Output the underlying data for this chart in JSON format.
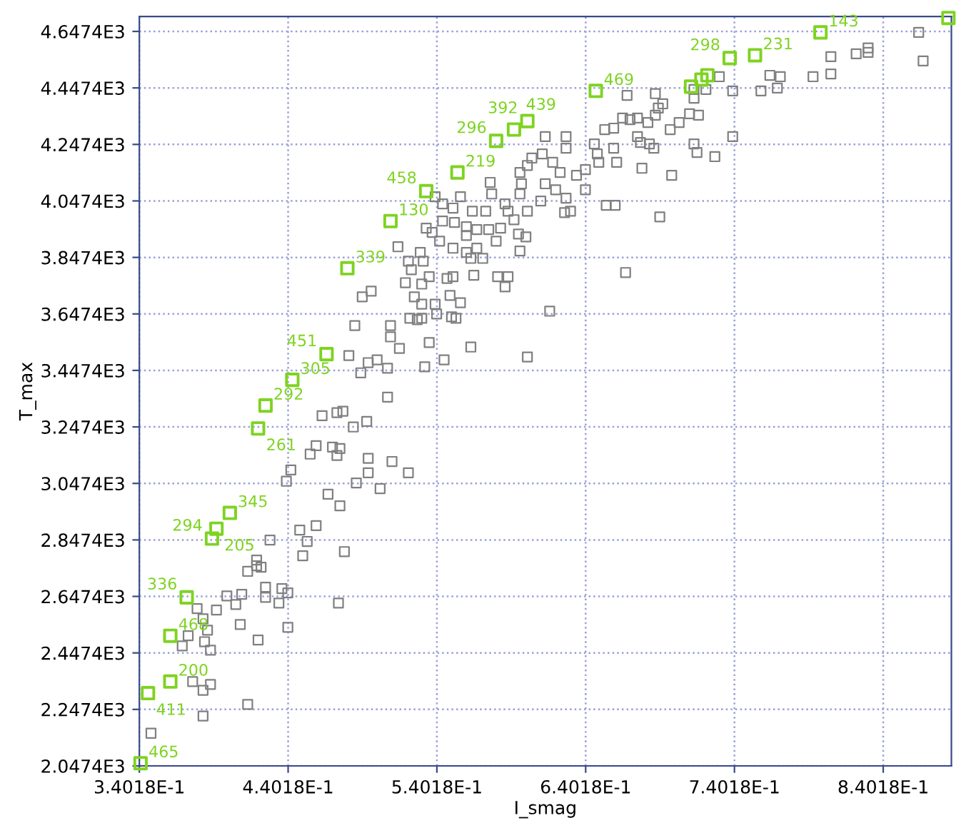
{
  "chart_data": {
    "type": "scatter",
    "xlabel": "I_smag",
    "ylabel": "T_max",
    "marker": "square",
    "grid": true,
    "xlim": [
      0.34018,
      0.886
    ],
    "ylim": [
      2047.4,
      4700
    ],
    "xticks": [
      {
        "value": 0.34018,
        "label": "3.4018E-1"
      },
      {
        "value": 0.44018,
        "label": "4.4018E-1"
      },
      {
        "value": 0.54018,
        "label": "5.4018E-1"
      },
      {
        "value": 0.64018,
        "label": "6.4018E-1"
      },
      {
        "value": 0.74018,
        "label": "7.4018E-1"
      },
      {
        "value": 0.84018,
        "label": "8.4018E-1"
      }
    ],
    "yticks": [
      {
        "value": 2047.4,
        "label": "2.0474E3"
      },
      {
        "value": 2247.4,
        "label": "2.2474E3"
      },
      {
        "value": 2447.4,
        "label": "2.4474E3"
      },
      {
        "value": 2647.4,
        "label": "2.6474E3"
      },
      {
        "value": 2847.4,
        "label": "2.8474E3"
      },
      {
        "value": 3047.4,
        "label": "3.0474E3"
      },
      {
        "value": 3247.4,
        "label": "3.2474E3"
      },
      {
        "value": 3447.4,
        "label": "3.4474E3"
      },
      {
        "value": 3647.4,
        "label": "3.6474E3"
      },
      {
        "value": 3847.4,
        "label": "3.8474E3"
      },
      {
        "value": 4047.4,
        "label": "4.0474E3"
      },
      {
        "value": 4247.4,
        "label": "4.2474E3"
      },
      {
        "value": 4447.4,
        "label": "4.4474E3"
      },
      {
        "value": 4647.4,
        "label": "4.6474E3"
      }
    ],
    "series": [
      {
        "color": "#808080",
        "x": [
          0.348,
          0.383,
          0.413,
          0.388,
          0.383,
          0.376,
          0.369,
          0.373,
          0.384,
          0.388,
          0.386,
          0.379,
          0.383,
          0.392,
          0.408,
          0.42,
          0.44,
          0.405,
          0.399,
          0.409,
          0.425,
          0.425,
          0.434,
          0.436,
          0.44,
          0.474,
          0.413,
          0.419,
          0.422,
          0.419,
          0.428,
          0.448,
          0.453,
          0.45,
          0.459,
          0.478,
          0.475,
          0.467,
          0.439,
          0.442,
          0.455,
          0.459,
          0.473,
          0.47,
          0.475,
          0.486,
          0.494,
          0.494,
          0.502,
          0.51,
          0.521,
          0.463,
          0.473,
          0.477,
          0.484,
          0.493,
          0.507,
          0.489,
          0.494,
          0.5,
          0.507,
          0.481,
          0.485,
          0.509,
          0.509,
          0.515,
          0.532,
          0.535,
          0.545,
          0.563,
          0.601,
          0.522,
          0.527,
          0.53,
          0.54,
          0.55,
          0.553,
          0.539,
          0.53,
          0.525,
          0.49,
          0.496,
          0.519,
          0.53,
          0.535,
          0.547,
          0.551,
          0.556,
          0.565,
          0.581,
          0.588,
          0.586,
          0.549,
          0.521,
          0.523,
          0.531,
          0.514,
          0.529,
          0.551,
          0.56,
          0.563,
          0.567,
          0.571,
          0.58,
          0.596,
          0.595,
          0.6,
          0.567,
          0.56,
          0.552,
          0.542,
          0.537,
          0.533,
          0.544,
          0.56,
          0.575,
          0.583,
          0.588,
          0.592,
          0.586,
          0.577,
          0.573,
          0.564,
          0.556,
          0.551,
          0.544,
          0.539,
          0.596,
          0.597,
          0.601,
          0.601,
          0.596,
          0.576,
          0.604,
          0.613,
          0.611,
          0.618,
          0.627,
          0.627,
          0.623,
          0.613,
          0.62,
          0.61,
          0.626,
          0.63,
          0.627,
          0.64,
          0.64,
          0.634,
          0.649,
          0.646,
          0.648,
          0.659,
          0.661,
          0.653,
          0.659,
          0.665,
          0.67,
          0.675,
          0.682,
          0.675,
          0.677,
          0.683,
          0.686,
          0.678,
          0.687,
          0.692,
          0.689,
          0.687,
          0.668,
          0.697,
          0.703,
          0.71,
          0.716,
          0.713,
          0.715,
          0.727,
          0.698,
          0.69,
          0.654,
          0.66,
          0.667,
          0.616,
          0.713,
          0.713,
          0.721,
          0.739,
          0.739,
          0.758,
          0.769,
          0.764,
          0.771,
          0.793,
          0.805,
          0.805,
          0.822,
          0.83,
          0.83,
          0.864,
          0.867,
          0.73
        ],
        "values": [
          2163,
          2224,
          2265,
          2336,
          2315,
          2346,
          2472,
          2508,
          2487,
          2457,
          2528,
          2604,
          2568,
          2599,
          2548,
          2493,
          2538,
          2619,
          2649,
          2655,
          2680,
          2644,
          2624,
          2675,
          2660,
          2624,
          2736,
          2756,
          2751,
          2776,
          2847,
          2882,
          2842,
          2791,
          2898,
          2806,
          2968,
          3009,
          3055,
          3095,
          3151,
          3181,
          3146,
          3176,
          3171,
          3049,
          3085,
          3136,
          3029,
          3125,
          3085,
          3287,
          3298,
          3303,
          3247,
          3267,
          3353,
          3439,
          3475,
          3485,
          3455,
          3500,
          3606,
          3566,
          3606,
          3525,
          3460,
          3546,
          3485,
          3530,
          3495,
          3632,
          3627,
          3632,
          3647,
          3637,
          3632,
          3682,
          3682,
          3708,
          3708,
          3728,
          3758,
          3753,
          3779,
          3773,
          3779,
          3687,
          3784,
          3779,
          3779,
          3743,
          3713,
          3834,
          3804,
          3834,
          3885,
          3865,
          3880,
          3865,
          3844,
          3880,
          3844,
          3905,
          3870,
          3930,
          3920,
          3946,
          3956,
          3971,
          3905,
          3936,
          3951,
          3976,
          3925,
          3946,
          3951,
          4011,
          3981,
          4037,
          4072,
          4011,
          4011,
          4062,
          4022,
          4037,
          4062,
          4072,
          4108,
          4011,
          4173,
          4148,
          4113,
          4199,
          4275,
          4214,
          4184,
          4234,
          4275,
          4148,
          4108,
          4087,
          4047,
          4006,
          4011,
          4057,
          4087,
          4158,
          4138,
          4184,
          4249,
          4214,
          4234,
          4184,
          4300,
          4305,
          4341,
          4335,
          4341,
          4325,
          4275,
          4254,
          4249,
          4234,
          4163,
          4351,
          4391,
          4376,
          4427,
          4421,
          4300,
          4325,
          4356,
          4351,
          4249,
          4219,
          4204,
          4138,
          3991,
          4032,
          4032,
          3794,
          3657,
          4411,
          4442,
          4442,
          4437,
          4275,
          4437,
          4447,
          4492,
          4487,
          4487,
          4497,
          4558,
          4568,
          4589,
          4573,
          4644,
          4543,
          4487
        ]
      },
      {
        "color": "#7ed321",
        "x": [
          0.341,
          0.346,
          0.361,
          0.361,
          0.372,
          0.389,
          0.392,
          0.401,
          0.42,
          0.425,
          0.443,
          0.466,
          0.48,
          0.509,
          0.533,
          0.554,
          0.58,
          0.592,
          0.601,
          0.647,
          0.711,
          0.718,
          0.722,
          0.737,
          0.754,
          0.798,
          0.884
        ],
        "values": [
          2057,
          2305,
          2346,
          2508,
          2644,
          2852,
          2887,
          2943,
          3242,
          3323,
          3414,
          3505,
          3809,
          3976,
          4082,
          4148,
          4260,
          4300,
          4330,
          4437,
          4452,
          4477,
          4492,
          4553,
          4563,
          4644,
          4695
        ]
      }
    ],
    "annotations": [
      {
        "text": "465",
        "x": 0.341,
        "y": 2057
      },
      {
        "text": "411",
        "x": 0.346,
        "y": 2305
      },
      {
        "text": "200",
        "x": 0.361,
        "y": 2346
      },
      {
        "text": "468",
        "x": 0.361,
        "y": 2508
      },
      {
        "text": "336",
        "x": 0.372,
        "y": 2644
      },
      {
        "text": "294",
        "x": 0.389,
        "y": 2852
      },
      {
        "text": "205",
        "x": 0.392,
        "y": 2887
      },
      {
        "text": "345",
        "x": 0.401,
        "y": 2943
      },
      {
        "text": "261",
        "x": 0.42,
        "y": 3242
      },
      {
        "text": "292",
        "x": 0.425,
        "y": 3323
      },
      {
        "text": "305",
        "x": 0.443,
        "y": 3414
      },
      {
        "text": "451",
        "x": 0.466,
        "y": 3505
      },
      {
        "text": "339",
        "x": 0.48,
        "y": 3809
      },
      {
        "text": "130",
        "x": 0.509,
        "y": 3976
      },
      {
        "text": "458",
        "x": 0.533,
        "y": 4082
      },
      {
        "text": "219",
        "x": 0.554,
        "y": 4148
      },
      {
        "text": "296",
        "x": 0.58,
        "y": 4260
      },
      {
        "text": "439",
        "x": 0.592,
        "y": 4300
      },
      {
        "text": "392",
        "x": 0.601,
        "y": 4330
      },
      {
        "text": "469",
        "x": 0.647,
        "y": 4437
      },
      {
        "text": "298",
        "x": 0.737,
        "y": 4553
      },
      {
        "text": "231",
        "x": 0.754,
        "y": 4563
      },
      {
        "text": "143",
        "x": 0.798,
        "y": 4644
      }
    ]
  }
}
